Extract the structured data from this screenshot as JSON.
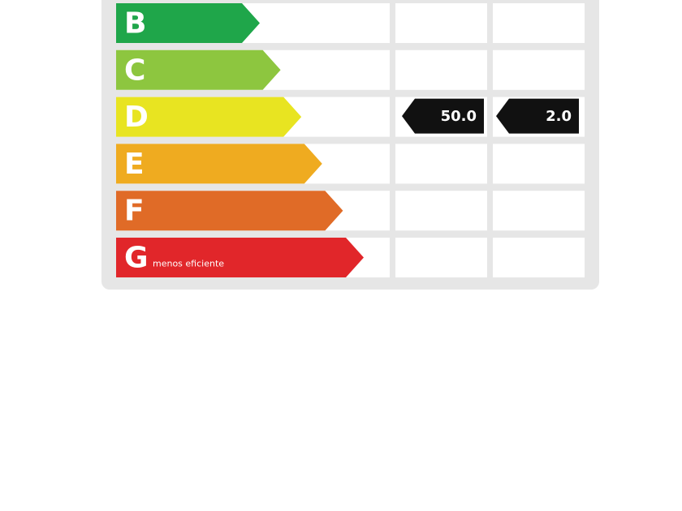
{
  "rows": [
    {
      "label": "B",
      "color": "#1fa64a"
    },
    {
      "label": "C",
      "color": "#8dc63f"
    },
    {
      "label": "D",
      "color": "#e8e421",
      "values": [
        "50.0",
        "2.0"
      ]
    },
    {
      "label": "E",
      "color": "#efab20"
    },
    {
      "label": "F",
      "color": "#e06b27"
    },
    {
      "label": "G",
      "color": "#e1262a",
      "note": "menos eficiente"
    }
  ]
}
